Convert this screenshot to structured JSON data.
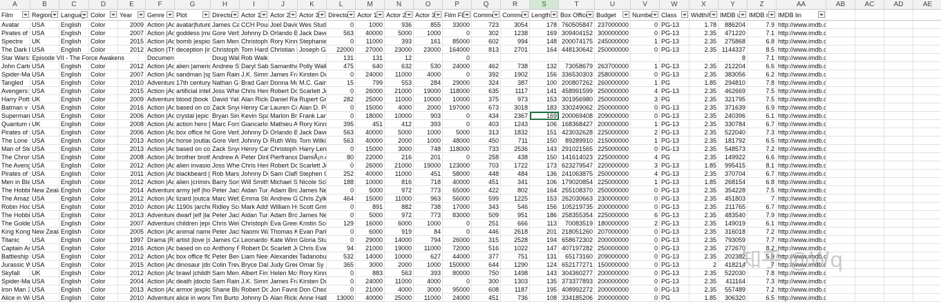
{
  "sheet": {
    "column_letters": [
      "A",
      "B",
      "C",
      "D",
      "E",
      "F",
      "G",
      "H",
      "I",
      "J",
      "K",
      "L",
      "M",
      "N",
      "O",
      "P",
      "Q",
      "R",
      "S",
      "T",
      "U",
      "V",
      "W",
      "X",
      "Y",
      "Z",
      "AA",
      "AB",
      "AC",
      "AD",
      "AE"
    ],
    "selected_column": "S",
    "header_row": [
      "Film",
      "Region",
      "Languag",
      "Color",
      "Year",
      "Genre",
      "Plot",
      "Directo",
      "Actor 1",
      "Actor 2",
      "Actor 3",
      "Director",
      "Actor 1",
      "Actor 2",
      "Actor 3",
      "Film FB",
      "Comme",
      "Comme",
      "Length",
      "Box Office",
      "Budget",
      "Number",
      "Class",
      "Width/h",
      "IMDB u",
      "IMDB ra",
      "IMDB lin",
      "",
      "",
      "",
      ""
    ],
    "active_cell_value": "169",
    "rows": [
      [
        "Avatar",
        "USA",
        "English",
        "Color",
        "2009",
        "Action |Adv",
        "avatar|future|m",
        "James Cam",
        "CCH Pounc",
        "Joel David",
        "Wes Studi",
        "0",
        "1000",
        "936",
        "855",
        "33000",
        "723",
        "3054",
        "178",
        "760505847",
        "237000000",
        "0",
        "PG-13",
        "1.78",
        "886204",
        "7.9",
        "http://www.imdb.com/title/tt0499549/?ref_=fn_tt_tt_1"
      ],
      [
        "Pirates of t",
        "USA",
        "English",
        "Color",
        "2007",
        "Action |Adv",
        "goddess |marria",
        "Gore Verbi",
        "Johnny De",
        "Orlando Bl",
        "Jack Daver",
        "563",
        "40000",
        "5000",
        "1000",
        "0",
        "302",
        "1238",
        "169",
        "309404152",
        "300000000",
        "0",
        "PG-13",
        "2.35",
        "471220",
        "7.1",
        "http://www.imdb.com/title/tt0449088/?ref_=fn_tt_tt_1"
      ],
      [
        "Spectre",
        "UK",
        "English",
        "Color",
        "2015",
        "Action |Adv",
        "bomb |espionag",
        "Sam Mend",
        "Christoph",
        "Rory Kinne",
        "Stephanie",
        "0",
        "11000",
        "393",
        "161",
        "85000",
        "602",
        "994",
        "148",
        "200074175",
        "245000000",
        "1",
        "PG-13",
        "2.35",
        "275868",
        "6.8",
        "http://www.imdb.com/title/tt2379713/?ref_=fn_tt_tt_1"
      ],
      [
        "The Dark K",
        "USA",
        "English",
        "Color",
        "2012",
        "Action |Thr",
        "deception |impr",
        "Christophe",
        "Tom Hardy",
        "Christian B",
        "Joseph Go",
        "22000",
        "27000",
        "23000",
        "23000",
        "164000",
        "813",
        "2701",
        "164",
        "448130642",
        "250000000",
        "0",
        "PG-13",
        "2.35",
        "1144337",
        "8.5",
        "http://www.imdb.com/title/tt1345836/?ref_=fn_tt_tt_1"
      ],
      [
        "Star Wars: Episode VII - The Force Awakens",
        "",
        "",
        "",
        "",
        "Documentary",
        "",
        "Doug Walk",
        "Rob Walker",
        "",
        "",
        "131",
        "131",
        "12",
        "",
        "0",
        "",
        "",
        "",
        "",
        "",
        "",
        "",
        "",
        "8",
        "7.1",
        "http://www.imdb.com/title/tt5289954/?ref_=fn_tt_tt_1"
      ],
      [
        "John Carte",
        "USA",
        "English",
        "Color",
        "2012",
        "Action |Adv",
        "alien |american",
        "Andrew Sta",
        "Daryl Sabar",
        "Samantha",
        "Polly Walke",
        "475",
        "640",
        "632",
        "530",
        "24000",
        "462",
        "738",
        "132",
        "73058679",
        "263700000",
        "1",
        "PG-13",
        "2.35",
        "212204",
        "6.6",
        "http://www.imdb.com/title/tt0401729/?ref_=fn_tt_tt_1"
      ],
      [
        "Spider-Ma",
        "USA",
        "English",
        "Color",
        "2007",
        "Action |Adv",
        "sandman |spide",
        "Sam Raimi",
        "J.K. Simmo",
        "James Fran",
        "Kirsten Du",
        "0",
        "24000",
        "11000",
        "4000",
        "0",
        "392",
        "1902",
        "156",
        "336530303",
        "258000000",
        "0",
        "PG-13",
        "2.35",
        "383056",
        "6.2",
        "http://www.imdb.com/title/tt0413300/?ref_=fn_tt_tt_1"
      ],
      [
        "Tangled",
        "USA",
        "English",
        "Color",
        "2010",
        "Adventure",
        "17th century |b",
        "Nathan Gr",
        "Brad Garre",
        "Donna Mu",
        "M.C. Gaine",
        "15",
        "799",
        "553",
        "284",
        "29000",
        "324",
        "387",
        "100",
        "200807262",
        "260000000",
        "1",
        "PG",
        "1.85",
        "294810",
        "7.8",
        "http://www.imdb.com/title/tt0398286/?ref_=fn_tt_tt_1"
      ],
      [
        "Avengers: /",
        "USA",
        "English",
        "Color",
        "2015",
        "Action |Adv",
        "artificial intellig",
        "Joss Whed",
        "Chris Hem",
        "Robert Do",
        "Scarlett Jo",
        "0",
        "26000",
        "21000",
        "19000",
        "118000",
        "635",
        "1117",
        "141",
        "458991599",
        "250000000",
        "4",
        "PG-13",
        "2.35",
        "462669",
        "7.5",
        "http://www.imdb.com/title/tt2395427/?ref_=fn_tt_tt_1"
      ],
      [
        "Harry Potte",
        "UK",
        "English",
        "Color",
        "2009",
        "Adventure",
        "blood |book |lo",
        "David Yate",
        "Alan Rickm",
        "Daniel Rad",
        "Rupert Grir",
        "282",
        "25000",
        "11000",
        "10000",
        "10000",
        "375",
        "973",
        "153",
        "301956980",
        "250000000",
        "3",
        "PG",
        "2.35",
        "321795",
        "7.5",
        "http://www.imdb.com/title/tt0417741/?ref_=fn_tt_tt_1"
      ],
      [
        "Batman v S",
        "USA",
        "English",
        "Color",
        "2016",
        "Action |Adv",
        "based on comic",
        "Zack Snyde",
        "Henry Cavi",
        "Lauren Coh",
        "Alan D. Pur",
        "0",
        "15000",
        "4000",
        "2000",
        "197000",
        "673",
        "3018",
        "183",
        "330249062",
        "250000000",
        "0",
        "PG-13",
        "2.35",
        "371639",
        "6.9",
        "http://www.imdb.com/title/tt2975590/?ref_=fn_tt_tt_1"
      ],
      [
        "Superman I",
        "USA",
        "English",
        "Color",
        "2006",
        "Action |Adv",
        "crystal |epic |lex",
        "Bryan Sing",
        "Kevin Spac",
        "Marlon Bra",
        "Frank Lang",
        "0",
        "18000",
        "10000",
        "903",
        "0",
        "434",
        "2367",
        "169",
        "200069408",
        "209000000",
        "0",
        "PG-13",
        "2.35",
        "240396",
        "6.1",
        "http://www.imdb.com/title/tt0348150/?ref_=fn_tt_tt_1"
      ],
      [
        "Quantum o",
        "UK",
        "English",
        "Color",
        "2008",
        "Action |Adv",
        "action hero |att",
        "Marc Forst",
        "Giancarlo",
        "Mathieu A",
        "Rory Kinne",
        "395",
        "451",
        "412",
        "393",
        "0",
        "403",
        "1243",
        "106",
        "168368427",
        "200000000",
        "1",
        "PG-13",
        "2.35",
        "330784",
        "6.7",
        "http://www.imdb.com/title/tt0830515/?ref_=fn_tt_tt_1"
      ],
      [
        "Pirates of t",
        "USA",
        "English",
        "Color",
        "2006",
        "Action |Adv",
        "box office hit |g",
        "Gore Verbi",
        "Johnny De",
        "Orlando Bl",
        "Jack Daver",
        "563",
        "40000",
        "5000",
        "1000",
        "5000",
        "313",
        "1832",
        "151",
        "423032628",
        "225000000",
        "2",
        "PG-13",
        "2.35",
        "522040",
        "7.3",
        "http://www.imdb.com/title/tt0383574/?ref_=fn_tt_tt_1"
      ],
      [
        "The Lone R",
        "USA",
        "English",
        "Color",
        "2013",
        "Action |Adv",
        "horse |outlaw |t",
        "Gore Verbi",
        "Johnny De",
        "Ruth Wilso",
        "Tom Wilkin",
        "563",
        "40000",
        "2000",
        "1000",
        "48000",
        "450",
        "711",
        "150",
        "89289910",
        "215000000",
        "1",
        "PG-13",
        "2.35",
        "181792",
        "6.5",
        "http://www.imdb.com/title/tt1210819/?ref_=fn_tt_tt_1"
      ],
      [
        "Man of Ste",
        "USA",
        "English",
        "Color",
        "2013",
        "Action |Adv",
        "based on comic",
        "Zack Snyde",
        "Henry Cavi",
        "Christophe",
        "Harry Lenn",
        "0",
        "15000",
        "3000",
        "748",
        "118000",
        "733",
        "2536",
        "143",
        "291021565",
        "225000000",
        "0",
        "PG-13",
        "2.35",
        "548573",
        "7.2",
        "http://www.imdb.com/title/tt0770828/?ref_=fn_tt_tt_1"
      ],
      [
        "The Chroni",
        "USA",
        "English",
        "Color",
        "2008",
        "Action |Adv",
        "brother brother",
        "Andrew Ad",
        "Peter Dinkl",
        "Pierfrances",
        "DamiÃ¡n Al",
        "80",
        "22000",
        "216",
        "201",
        "0",
        "258",
        "438",
        "150",
        "141614023",
        "225000000",
        "4",
        "PG",
        "2.35",
        "149922",
        "6.6",
        "http://www.imdb.com/title/tt0499448/?ref_=fn_tt_tt_1"
      ],
      [
        "The Avenge",
        "USA",
        "English",
        "Color",
        "2012",
        "Action |Adv",
        "alien invasion |a",
        "Joss Whed",
        "Chris Hem",
        "Robert Do",
        "Scarlett Jo",
        "0",
        "26000",
        "21000",
        "19000",
        "123000",
        "703",
        "1722",
        "173",
        "623279547",
        "220000000",
        "3",
        "PG-13",
        "1.85",
        "995415",
        "8.1",
        "http://www.imdb.com/title/tt0848228/?ref_=fn_tt_tt_1"
      ],
      [
        "Pirates of t",
        "USA",
        "English",
        "Color",
        "2011",
        "Action |Adv",
        "blackbeard |cap",
        "Rob Marsh",
        "Johnny De",
        "Sam Claflin",
        "Stephen Gr",
        "252",
        "40000",
        "11000",
        "451",
        "58000",
        "448",
        "484",
        "136",
        "241063875",
        "250000000",
        "4",
        "PG-13",
        "2.35",
        "370704",
        "6.7",
        "http://www.imdb.com/title/tt1298650/?ref_=fn_tt_tt_1"
      ],
      [
        "Men in Bla",
        "USA",
        "English",
        "Color",
        "2012",
        "Action |Adv",
        "alien |criminal |",
        "Barry Sonn",
        "Will Smith",
        "Michael St",
        "Nicole Sche",
        "188",
        "10000",
        "816",
        "718",
        "40000",
        "451",
        "341",
        "106",
        "179020854",
        "225000000",
        "1",
        "PG-13",
        "1.85",
        "268154",
        "6.8",
        "http://www.imdb.com/title/tt1409024/?ref_=fn_tt_tt_1"
      ],
      [
        "The Hobbit",
        "New Zealan",
        "English",
        "Color",
        "2014",
        "Adventure",
        "army |elf |hobbi",
        "Peter Jacks",
        "Aidan Turn",
        "Adam Brow",
        "James Nest",
        "0",
        "5000",
        "972",
        "773",
        "65000",
        "422",
        "802",
        "164",
        "255108370",
        "250000000",
        "0",
        "PG-13",
        "2.35",
        "354228",
        "7.5",
        "http://www.imdb.com/title/tt2310332/?ref_=fn_tt_tt_1"
      ],
      [
        "The Amazir",
        "USA",
        "English",
        "Color",
        "2012",
        "Action |Adv",
        "lizard |outcast |",
        "Marc Webb",
        "Emma Ston",
        "Andrew Ga",
        "Chris Zylka",
        "464",
        "15000",
        "11000",
        "963",
        "56000",
        "599",
        "1225",
        "153",
        "262030663",
        "230000000",
        "0",
        "PG-13",
        "2.35",
        "451803",
        "7",
        "http://www.imdb.com/title/tt0948470/?ref_=fn_tt_tt_1"
      ],
      [
        "Robin Hoo",
        "USA",
        "English",
        "Color",
        "2010",
        "Action |Adv",
        "1190s |archer |k",
        "Ridley Scot",
        "Mark Addy",
        "William Hu",
        "Scott Grim",
        "0",
        "891",
        "882",
        "738",
        "17000",
        "343",
        "546",
        "156",
        "105219735",
        "200000000",
        "0",
        "PG-13",
        "2.35",
        "211765",
        "6.7",
        "http://www.imdb.com/title/tt0955308/?ref_=fn_tt_tt_1"
      ],
      [
        "The Hobbit",
        "USA",
        "English",
        "Color",
        "2013",
        "Adventure",
        "dwarf |elf |lake t",
        "Peter Jacks",
        "Aidan Turn",
        "Adam Brow",
        "James Nest",
        "0",
        "5000",
        "972",
        "773",
        "83000",
        "509",
        "951",
        "186",
        "258355354",
        "225000000",
        "6",
        "PG-13",
        "2.35",
        "483540",
        "7.9",
        "http://www.imdb.com/title/tt1170358/?ref_=fn_tt_tt_1"
      ],
      [
        "The Golder",
        "USA",
        "English",
        "Color",
        "2007",
        "Adventure",
        "children |epic |f",
        "Chris Weit",
        "Christophe",
        "Eva Green",
        "Kristin Sco",
        "129",
        "16000",
        "6000",
        "1000",
        "0",
        "251",
        "666",
        "113",
        "70083519",
        "180000000",
        "2",
        "PG-13",
        "2.35",
        "149019",
        "6.1",
        "http://www.imdb.com/title/tt0385752/?ref_=fn_tt_tt_1"
      ],
      [
        "King Kong",
        "New Zealan",
        "English",
        "Color",
        "2005",
        "Action |Adv",
        "animal name in",
        "Peter Jacks",
        "Naomi Wat",
        "Thomas Kr",
        "Evan Parke",
        "0",
        "6000",
        "919",
        "84",
        "0",
        "446",
        "2618",
        "201",
        "218051260",
        "207000000",
        "0",
        "PG-13",
        "2.35",
        "316018",
        "7.2",
        "http://www.imdb.com/title/tt0360717/?ref_=fn_tt_tt_1"
      ],
      [
        "Titanic",
        "USA",
        "English",
        "Color",
        "1997",
        "Drama |Rom",
        "artist |love |ship",
        "James Cam",
        "Leonardo D",
        "Kate Winsl",
        "Gloria Stua",
        "0",
        "29000",
        "14000",
        "794",
        "26000",
        "315",
        "2528",
        "194",
        "658672302",
        "200000000",
        "0",
        "PG-13",
        "2.35",
        "793059",
        "7.7",
        "http://www.imdb.com/title/tt0120338/?ref_=fn_tt_tt_1"
      ],
      [
        "Captain Am",
        "USA",
        "English",
        "Color",
        "2016",
        "Action |Adv",
        "based on comic",
        "Anthony R",
        "Robert Do",
        "Scarlett Jo",
        "Chris Evan",
        "94",
        "21000",
        "19000",
        "11000",
        "72000",
        "516",
        "1022",
        "147",
        "407197282",
        "250000000",
        "0",
        "PG-13",
        "2.35",
        "272670",
        "8.2",
        "http://www.imdb.com/title/tt3498820/?ref_=fn_tt_tt_1"
      ],
      [
        "Battleship",
        "USA",
        "English",
        "Color",
        "2012",
        "Action |Adv",
        "box office flop |",
        "Peter Berg",
        "Liam Neess",
        "Alexander S",
        "Tadanobu A",
        "532",
        "14000",
        "10000",
        "627",
        "44000",
        "377",
        "751",
        "131",
        "65173160",
        "209000000",
        "0",
        "PG-13",
        "2.35",
        "202382",
        "5.9",
        "http://www.imdb.com/title/tt1440129/?ref_=fn_tt_tt_1"
      ],
      [
        "Jurassic W",
        "USA",
        "English",
        "Color",
        "2015",
        "Action |Adv",
        "dinosaur |disas",
        "Colin Trevo",
        "Bryce Dalla",
        "Judy Greer",
        "Omar Sy",
        "365",
        "3000",
        "2000",
        "1000",
        "150000",
        "644",
        "1290",
        "124",
        "652177271",
        "150000000",
        "0",
        "PG-13",
        "2",
        "418214",
        "7",
        "http://www.imdb.com/title/tt0369610/?ref_=fn_tt_tt_1"
      ],
      [
        "Skyfall",
        "UK",
        "English",
        "Color",
        "2012",
        "Action |Adv",
        "brawl |childhoo",
        "Sam Mend",
        "Albert Finn",
        "Helen McC",
        "Rory Kinne",
        "0",
        "883",
        "563",
        "393",
        "80000",
        "750",
        "1498",
        "143",
        "304360277",
        "200000000",
        "0",
        "PG-13",
        "2.35",
        "522030",
        "7.8",
        "http://www.imdb.com/title/tt1074638/?ref_=fn_tt_tt_1"
      ],
      [
        "Spider-Mar",
        "USA",
        "English",
        "Color",
        "2004",
        "Action |Adv",
        "death |doctor |s",
        "Sam Raimi",
        "J.K. Simmo",
        "James Fran",
        "Kirsten Du",
        "0",
        "24000",
        "11000",
        "4000",
        "0",
        "300",
        "1303",
        "135",
        "373377893",
        "200000000",
        "0",
        "PG-13",
        "2.35",
        "411164",
        "7.3",
        "http://www.imdb.com/title/tt0316654/?ref_=fn_tt_tt_1"
      ],
      [
        "Iron Man 3",
        "USA",
        "English",
        "Color",
        "2013",
        "Action |Adv",
        "armor |explosio",
        "Shane Blac",
        "Robert Do",
        "Jon Favrea",
        "Don Cheadl",
        "0",
        "21000",
        "4000",
        "3000",
        "95000",
        "608",
        "1187",
        "195",
        "408992272",
        "200000000",
        "0",
        "PG-13",
        "2.35",
        "557489",
        "7.2",
        "http://www.imdb.com/title/tt1300854/?ref_=fn_tt_tt_1"
      ],
      [
        "Alice in Wo",
        "USA",
        "English",
        "Color",
        "2010",
        "Adventure",
        "alice in wonderl",
        "Tim Burton",
        "Johnny De",
        "Alan Rickm",
        "Anne Hatha",
        "13000",
        "40000",
        "25000",
        "11000",
        "24000",
        "451",
        "736",
        "108",
        "334185206",
        "200000000",
        "0",
        "PG",
        "1.85",
        "306320",
        "6.5",
        "http://www.imdb.com/title/tt1014759/?ref_=fn_tt_tt_1"
      ]
    ]
  },
  "watermark": {
    "text": "知乎 @Wq"
  }
}
